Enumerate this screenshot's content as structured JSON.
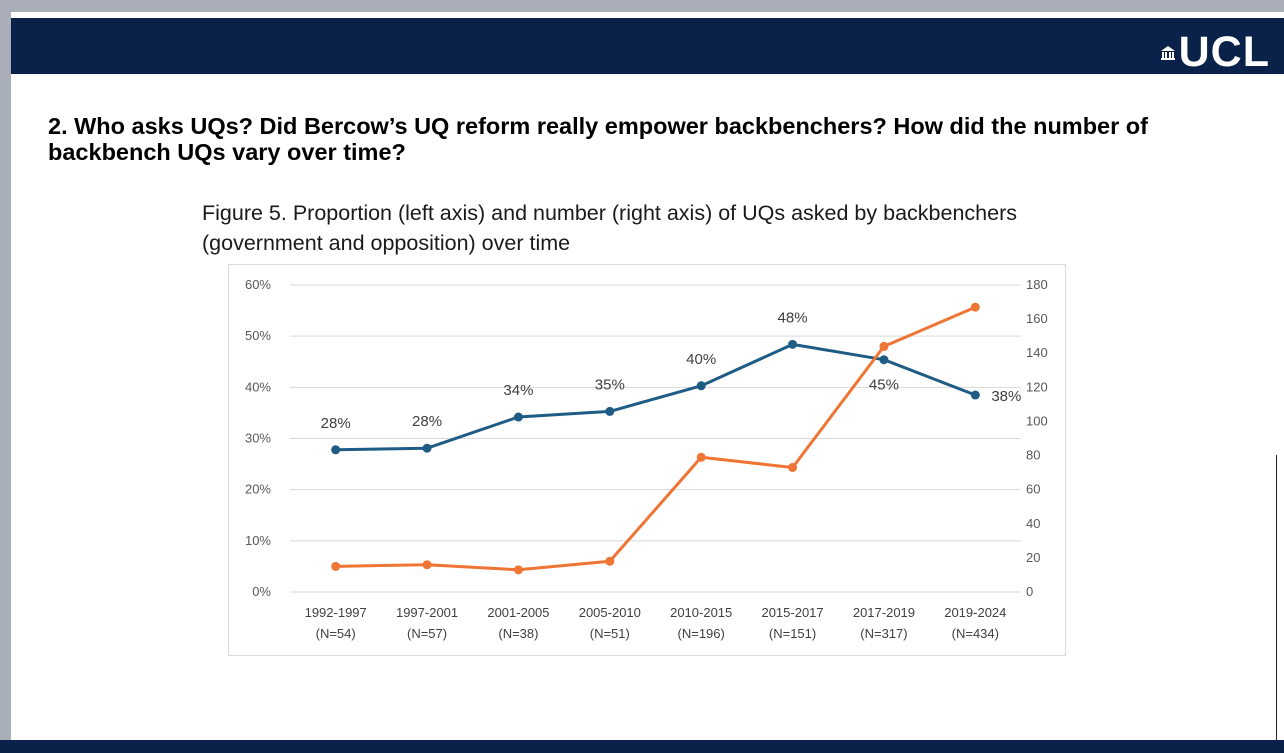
{
  "logo": {
    "text": "UCL"
  },
  "slide": {
    "title": "2. Who asks UQs? Did Bercow’s UQ reform really empower backbenchers? How did the number of backbench UQs vary over time?",
    "figure_caption": "Figure 5. Proportion (left axis) and number (right axis) of UQs asked by backbenchers (government and opposition) over time"
  },
  "colors": {
    "header": "#0a2149",
    "proportion_series": "#1f5c85",
    "number_series": "#ee7533",
    "grid": "#d9d9d9"
  },
  "chart_data": {
    "type": "line",
    "title": "Figure 5. Proportion (left axis) and number (right axis) of UQs asked by backbenchers (government and opposition) over time",
    "categories": [
      "1992-1997",
      "1997-2001",
      "2001-2005",
      "2005-2010",
      "2010-2015",
      "2015-2017",
      "2017-2019",
      "2019-2024"
    ],
    "category_notes": [
      "(N=54)",
      "(N=57)",
      "(N=38)",
      "(N=51)",
      "(N=196)",
      "(N=151)",
      "(N=317)",
      "(N=434)"
    ],
    "y_left": {
      "ticks": [
        "0%",
        "10%",
        "20%",
        "30%",
        "40%",
        "50%",
        "60%"
      ],
      "ylim": [
        0,
        60
      ]
    },
    "y_right": {
      "ticks": [
        "0",
        "20",
        "40",
        "60",
        "80",
        "100",
        "120",
        "140",
        "160",
        "180"
      ],
      "ylim": [
        0,
        180
      ]
    },
    "grid": true,
    "series": [
      {
        "name": "Proportion of UQs asked by backbenchers",
        "axis": "left",
        "color": "#1f5c85",
        "values": [
          27.8,
          28.1,
          34.2,
          35.3,
          40.3,
          48.4,
          45.4,
          38.5
        ],
        "labels": [
          "28%",
          "28%",
          "34%",
          "35%",
          "40%",
          "48%",
          "45%",
          "38%"
        ]
      },
      {
        "name": "Number of UQs asked by backbenchers",
        "axis": "right",
        "color": "#ee7533",
        "values": [
          15,
          16,
          13,
          18,
          79,
          73,
          144,
          167
        ]
      }
    ]
  }
}
